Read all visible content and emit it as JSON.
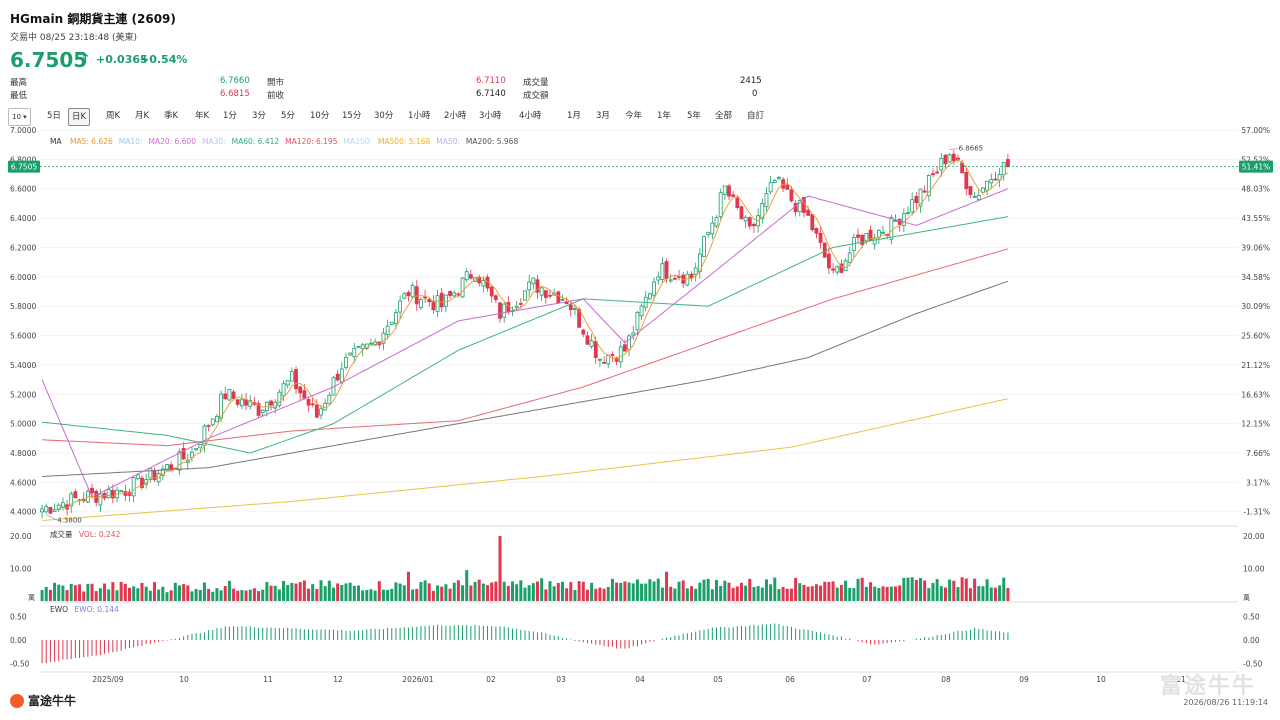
{
  "header": {
    "title": "HGmain  銅期貨主連 (2609)",
    "status": "交易中 08/25 23:18:48 (美東)",
    "price": "6.7505",
    "change": "+0.0365",
    "change_pct": "+0.54%",
    "arrow": "↑"
  },
  "stats": {
    "high_label": "最高",
    "high": "6.7660",
    "low_label": "最低",
    "low": "6.6815",
    "open_label": "開市",
    "open": "6.7110",
    "prev_label": "前收",
    "prev": "6.7140",
    "vol_label": "成交量",
    "vol": "2415",
    "amt_label": "成交額",
    "amt": "0"
  },
  "toolbar": {
    "menu": "10 ▾",
    "items": [
      "5日",
      "日K",
      "周K",
      "月K",
      "季K",
      "年K",
      "1分",
      "3分",
      "5分",
      "10分",
      "15分",
      "30分",
      "1小時",
      "2小時",
      "3小時",
      "4小時",
      "1月",
      "3月",
      "今年",
      "1年",
      "5年",
      "全部",
      "自訂"
    ],
    "selected": "日K"
  },
  "ma_legend": {
    "label": "MA",
    "items": [
      {
        "text": "MA5: 6.626",
        "color": "#e69a2e"
      },
      {
        "text": "MA10:",
        "color": "#9bc6e8"
      },
      {
        "text": "MA20: 6.600",
        "color": "#d36bd1"
      },
      {
        "text": "MA30:",
        "color": "#b5c4e6"
      },
      {
        "text": "MA60: 6.412",
        "color": "#2fae73"
      },
      {
        "text": "MA120: 6.195",
        "color": "#e0505b"
      },
      {
        "text": "MA250:",
        "color": "#b9d9ee"
      },
      {
        "text": "MA500: 5.168",
        "color": "#e9b32a"
      },
      {
        "text": "MA50:",
        "color": "#c9a9e8"
      },
      {
        "text": "MA200: 5.968",
        "color": "#555555"
      }
    ]
  },
  "current_price_tag": "6.7505",
  "current_pct_tag": "51.41%",
  "max_marker": "6.8665",
  "min_marker": "4.3800",
  "volume_panel": {
    "label": "成交量",
    "value": "VOL: 0.242",
    "unit": "萬"
  },
  "ewo_panel": {
    "label": "EWO",
    "value": "EWO: 0.144"
  },
  "footer": {
    "logo": "富途牛牛",
    "timestamp": "2026/08/26 11:19:14",
    "watermark": "富途牛牛"
  },
  "colors": {
    "up": "#1a9f6b",
    "down": "#e0374f"
  },
  "chart_data": {
    "type": "candlestick",
    "price_axis": {
      "ticks": [
        "7.0000",
        "6.8000",
        "6.6000",
        "6.4000",
        "6.2000",
        "6.0000",
        "5.8000",
        "5.6000",
        "5.4000",
        "5.2000",
        "5.0000",
        "4.8000",
        "4.6000",
        "4.4000"
      ],
      "range": [
        4.33,
        7.0
      ]
    },
    "pct_axis": {
      "ticks": [
        "57.00%",
        "52.52%",
        "48.03%",
        "43.55%",
        "39.06%",
        "34.58%",
        "30.09%",
        "25.60%",
        "21.12%",
        "16.63%",
        "12.15%",
        "7.66%",
        "3.17%",
        "-1.31%"
      ]
    },
    "volume_axis": {
      "ticks": [
        "20.00",
        "10.00"
      ],
      "unit": "萬",
      "range": [
        0,
        20
      ]
    },
    "ewo_axis": {
      "ticks": [
        "0.50",
        "0.00",
        "-0.50"
      ],
      "range": [
        -0.6,
        0.6
      ]
    },
    "x_labels": [
      "2025/09",
      "10",
      "11",
      "12",
      "2026/01",
      "02",
      "03",
      "04",
      "05",
      "06",
      "07",
      "08",
      "09",
      "10",
      "11"
    ],
    "close_anchors": [
      [
        0,
        4.42
      ],
      [
        10,
        4.5
      ],
      [
        20,
        4.55
      ],
      [
        30,
        4.7
      ],
      [
        36,
        4.8
      ],
      [
        44,
        5.2
      ],
      [
        52,
        5.1
      ],
      [
        60,
        5.3
      ],
      [
        66,
        5.05
      ],
      [
        72,
        5.4
      ],
      [
        80,
        5.55
      ],
      [
        88,
        5.9
      ],
      [
        96,
        5.8
      ],
      [
        104,
        6.05
      ],
      [
        110,
        5.75
      ],
      [
        118,
        5.95
      ],
      [
        126,
        5.85
      ],
      [
        134,
        5.45
      ],
      [
        140,
        5.5
      ],
      [
        148,
        6.05
      ],
      [
        156,
        6.0
      ],
      [
        164,
        6.6
      ],
      [
        170,
        6.3
      ],
      [
        176,
        6.65
      ],
      [
        184,
        6.4
      ],
      [
        190,
        6.0
      ],
      [
        196,
        6.25
      ],
      [
        204,
        6.35
      ],
      [
        212,
        6.6
      ],
      [
        218,
        6.85
      ],
      [
        224,
        6.55
      ],
      [
        230,
        6.75
      ]
    ],
    "ma_anchors": {
      "MA200": [
        [
          0,
          4.64
        ],
        [
          40,
          4.7
        ],
        [
          80,
          4.9
        ],
        [
          120,
          5.1
        ],
        [
          160,
          5.3
        ],
        [
          184,
          5.45
        ],
        [
          210,
          5.75
        ],
        [
          232,
          5.97
        ]
      ],
      "MA500": [
        [
          0,
          4.34
        ],
        [
          60,
          4.47
        ],
        [
          120,
          4.64
        ],
        [
          180,
          4.84
        ],
        [
          232,
          5.17
        ]
      ],
      "MA120": [
        [
          0,
          4.89
        ],
        [
          30,
          4.85
        ],
        [
          60,
          4.95
        ],
        [
          100,
          5.02
        ],
        [
          130,
          5.25
        ],
        [
          160,
          5.55
        ],
        [
          190,
          5.85
        ],
        [
          232,
          6.19
        ]
      ],
      "MA60": [
        [
          0,
          5.01
        ],
        [
          30,
          4.92
        ],
        [
          50,
          4.8
        ],
        [
          70,
          5.0
        ],
        [
          100,
          5.5
        ],
        [
          130,
          5.85
        ],
        [
          160,
          5.8
        ],
        [
          190,
          6.2
        ],
        [
          232,
          6.41
        ]
      ],
      "MA20": [
        [
          0,
          5.3
        ],
        [
          12,
          4.5
        ],
        [
          40,
          4.9
        ],
        [
          70,
          5.25
        ],
        [
          100,
          5.7
        ],
        [
          130,
          5.85
        ],
        [
          140,
          5.55
        ],
        [
          160,
          6.0
        ],
        [
          184,
          6.55
        ],
        [
          210,
          6.35
        ],
        [
          232,
          6.6
        ]
      ],
      "MA5": [
        [
          0,
          4.42
        ],
        [
          232,
          6.63
        ]
      ]
    },
    "volume_series_note": "daily volume bars in 萬 (10k) units",
    "volume_peaks": [
      [
        110,
        20
      ],
      [
        102,
        9.5
      ],
      [
        88,
        9
      ],
      [
        120,
        7
      ],
      [
        150,
        9
      ],
      [
        160,
        6.8
      ],
      [
        176,
        7.2
      ]
    ],
    "ewo_anchors": [
      [
        0,
        -0.5
      ],
      [
        15,
        -0.3
      ],
      [
        35,
        0.1
      ],
      [
        45,
        0.3
      ],
      [
        60,
        0.25
      ],
      [
        75,
        0.2
      ],
      [
        95,
        0.32
      ],
      [
        110,
        0.3
      ],
      [
        120,
        0.15
      ],
      [
        130,
        -0.05
      ],
      [
        140,
        -0.2
      ],
      [
        150,
        0.05
      ],
      [
        160,
        0.25
      ],
      [
        176,
        0.35
      ],
      [
        190,
        0.1
      ],
      [
        200,
        -0.1
      ],
      [
        212,
        0.05
      ],
      [
        224,
        0.25
      ],
      [
        232,
        0.15
      ]
    ]
  }
}
